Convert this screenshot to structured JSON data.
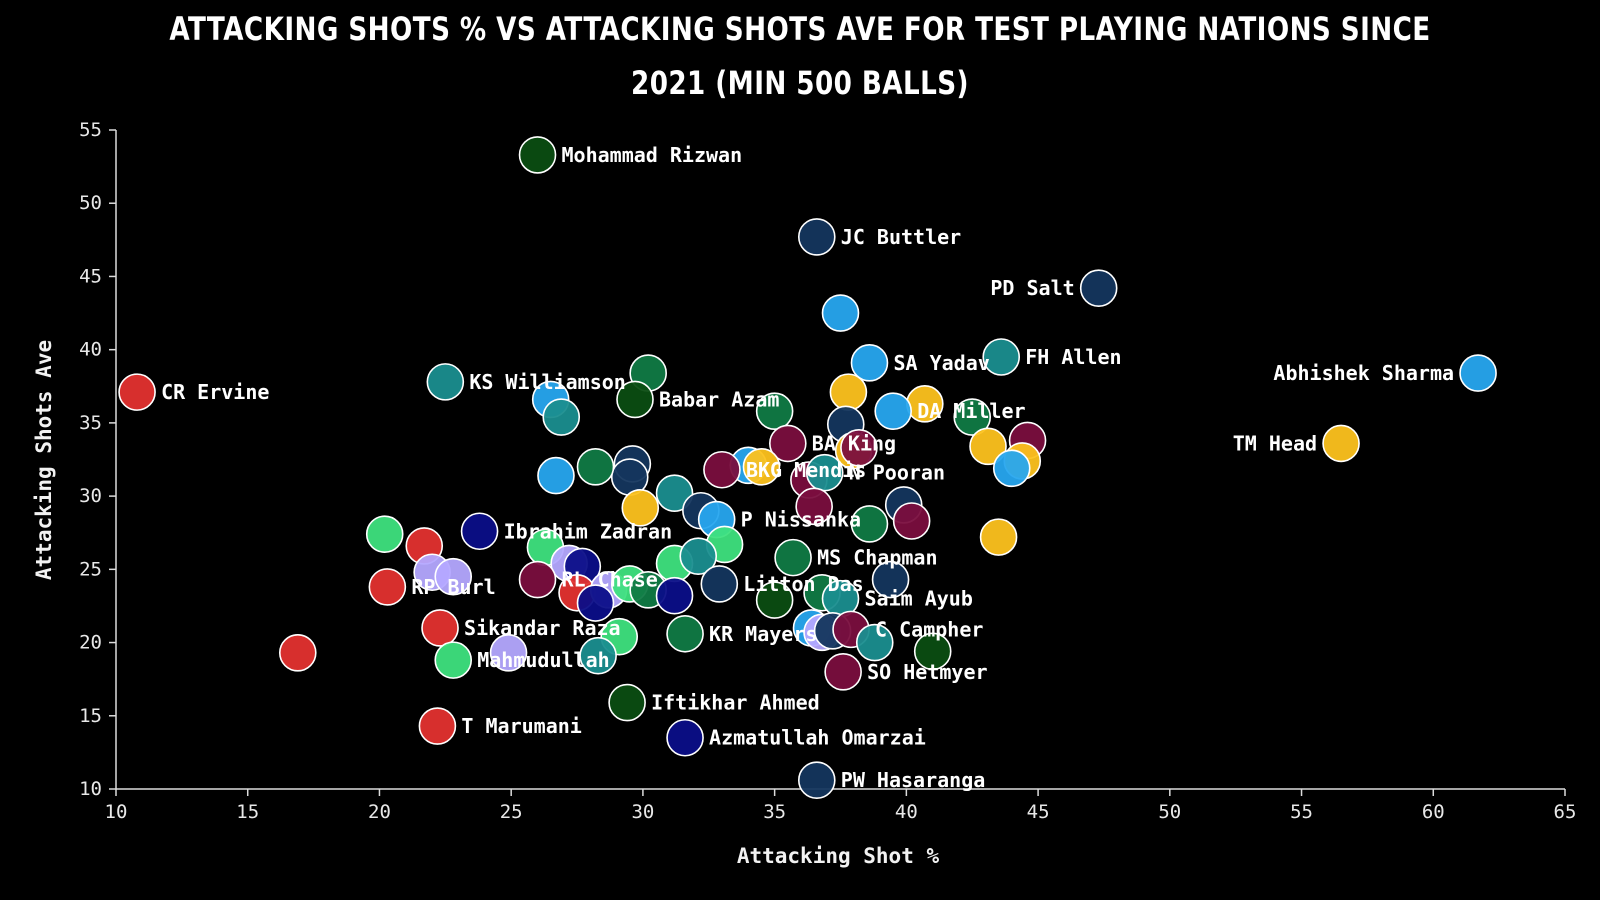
{
  "chart_data": {
    "type": "scatter",
    "title": "Attacking Shots  % vs Attacking Shots Ave for Test playing nations since 2021 (min 500 balls)",
    "xlabel": "Attacking Shot %",
    "ylabel": "Attacking Shots Ave",
    "xlim": [
      10,
      65
    ],
    "ylim": [
      10,
      55
    ],
    "xticks": [
      10,
      15,
      20,
      25,
      30,
      35,
      40,
      45,
      50,
      55,
      60,
      65
    ],
    "yticks": [
      10,
      15,
      20,
      25,
      30,
      35,
      40,
      45,
      50,
      55
    ],
    "grid": false,
    "colors": {
      "pakistan": "#0b4d12",
      "england": "#14365e",
      "india": "#27a7ef",
      "australia": "#fdc21e",
      "westindies": "#7a0e3e",
      "zimbabwe": "#e3322f",
      "newzealand": "#1a8e8f",
      "southafrica": "#107a45",
      "bangladesh": "#1a7f50",
      "srilanka": "#2a3d8f",
      "afghanistan": "#0b0e88",
      "ireland": "#3ee17e",
      "other": "#b4a8ff"
    },
    "points": [
      {
        "x": 26.0,
        "y": 53.3,
        "label": "Mohammad Rizwan",
        "color": "#0b4d12"
      },
      {
        "x": 36.6,
        "y": 47.7,
        "label": "JC Buttler",
        "color": "#14365e"
      },
      {
        "x": 47.3,
        "y": 44.2,
        "label": "PD Salt",
        "color": "#14365e"
      },
      {
        "x": 37.5,
        "y": 42.5,
        "label": "",
        "color": "#27a7ef"
      },
      {
        "x": 10.8,
        "y": 37.1,
        "label": "CR Ervine",
        "color": "#e3322f"
      },
      {
        "x": 22.5,
        "y": 37.8,
        "label": "KS Williamson",
        "color": "#1a8e8f"
      },
      {
        "x": 30.2,
        "y": 38.4,
        "label": "",
        "color": "#107a45"
      },
      {
        "x": 29.7,
        "y": 36.6,
        "label": "Babar Azam",
        "color": "#0b4d12"
      },
      {
        "x": 26.5,
        "y": 36.6,
        "label": "",
        "color": "#27a7ef"
      },
      {
        "x": 26.9,
        "y": 35.4,
        "label": "",
        "color": "#1a8e8f"
      },
      {
        "x": 38.6,
        "y": 39.1,
        "label": "SA Yadav",
        "color": "#27a7ef"
      },
      {
        "x": 37.8,
        "y": 37.1,
        "label": "",
        "color": "#fdc21e"
      },
      {
        "x": 43.6,
        "y": 39.5,
        "label": "FH Allen",
        "color": "#1a8e8f"
      },
      {
        "x": 40.7,
        "y": 36.3,
        "label": "",
        "color": "#fdc21e"
      },
      {
        "x": 39.5,
        "y": 35.8,
        "label": "DA Miller",
        "color": "#27a7ef"
      },
      {
        "x": 35.0,
        "y": 35.8,
        "label": "",
        "color": "#107a45"
      },
      {
        "x": 37.7,
        "y": 34.9,
        "label": "",
        "color": "#14365e"
      },
      {
        "x": 42.5,
        "y": 35.4,
        "label": "",
        "color": "#107a45"
      },
      {
        "x": 43.1,
        "y": 33.4,
        "label": "",
        "color": "#fdc21e"
      },
      {
        "x": 44.6,
        "y": 33.8,
        "label": "",
        "color": "#7a0e3e"
      },
      {
        "x": 44.4,
        "y": 32.4,
        "label": "",
        "color": "#fdc21e"
      },
      {
        "x": 44.0,
        "y": 31.9,
        "label": "",
        "color": "#27a7ef"
      },
      {
        "x": 61.7,
        "y": 38.4,
        "label": "Abhishek Sharma",
        "color": "#27a7ef"
      },
      {
        "x": 56.5,
        "y": 33.6,
        "label": "TM Head",
        "color": "#fdc21e"
      },
      {
        "x": 35.5,
        "y": 33.6,
        "label": "BA King",
        "color": "#7a0e3e"
      },
      {
        "x": 38.0,
        "y": 33.1,
        "label": "",
        "color": "#fdc21e"
      },
      {
        "x": 38.2,
        "y": 33.3,
        "label": "",
        "color": "#7a0e3e"
      },
      {
        "x": 34.0,
        "y": 32.1,
        "label": "",
        "color": "#27a7ef"
      },
      {
        "x": 34.5,
        "y": 32.0,
        "label": "",
        "color": "#fdc21e"
      },
      {
        "x": 33.0,
        "y": 31.8,
        "label": "BKG Mendis",
        "color": "#7a0e3e"
      },
      {
        "x": 29.6,
        "y": 32.2,
        "label": "",
        "color": "#14365e"
      },
      {
        "x": 29.5,
        "y": 31.3,
        "label": "",
        "color": "#14365e"
      },
      {
        "x": 28.2,
        "y": 32.0,
        "label": "",
        "color": "#107a45"
      },
      {
        "x": 26.7,
        "y": 31.4,
        "label": "",
        "color": "#27a7ef"
      },
      {
        "x": 36.3,
        "y": 31.1,
        "label": "",
        "color": "#7a0e3e"
      },
      {
        "x": 36.9,
        "y": 31.6,
        "label": "N Pooran",
        "color": "#1a8e8f"
      },
      {
        "x": 31.2,
        "y": 30.2,
        "label": "",
        "color": "#1a8e8f"
      },
      {
        "x": 29.9,
        "y": 29.2,
        "label": "",
        "color": "#fdc21e"
      },
      {
        "x": 32.2,
        "y": 29.0,
        "label": "",
        "color": "#14365e"
      },
      {
        "x": 39.9,
        "y": 29.4,
        "label": "",
        "color": "#14365e"
      },
      {
        "x": 36.5,
        "y": 29.3,
        "label": "",
        "color": "#7a0e3e"
      },
      {
        "x": 32.8,
        "y": 28.4,
        "label": "P Nissanka",
        "color": "#27a7ef"
      },
      {
        "x": 38.6,
        "y": 28.1,
        "label": "",
        "color": "#107a45"
      },
      {
        "x": 40.2,
        "y": 28.3,
        "label": "",
        "color": "#7a0e3e"
      },
      {
        "x": 43.5,
        "y": 27.2,
        "label": "",
        "color": "#fdc21e"
      },
      {
        "x": 20.2,
        "y": 27.4,
        "label": "",
        "color": "#3ee17e"
      },
      {
        "x": 21.7,
        "y": 26.6,
        "label": "",
        "color": "#e3322f"
      },
      {
        "x": 23.8,
        "y": 27.6,
        "label": "Ibrahim Zadran",
        "color": "#0b0e88"
      },
      {
        "x": 26.3,
        "y": 26.5,
        "label": "",
        "color": "#3ee17e"
      },
      {
        "x": 33.1,
        "y": 26.7,
        "label": "",
        "color": "#3ee17e"
      },
      {
        "x": 35.7,
        "y": 25.8,
        "label": "MS Chapman",
        "color": "#107a45"
      },
      {
        "x": 31.2,
        "y": 25.4,
        "label": "",
        "color": "#3ee17e"
      },
      {
        "x": 32.1,
        "y": 25.9,
        "label": "",
        "color": "#1a8e8f"
      },
      {
        "x": 22.0,
        "y": 24.8,
        "label": "",
        "color": "#b4a8ff"
      },
      {
        "x": 22.8,
        "y": 24.5,
        "label": "",
        "color": "#b4a8ff"
      },
      {
        "x": 27.2,
        "y": 25.4,
        "label": "",
        "color": "#b4a8ff"
      },
      {
        "x": 27.7,
        "y": 25.2,
        "label": "",
        "color": "#0b0e88"
      },
      {
        "x": 26.0,
        "y": 24.3,
        "label": "RL Chase",
        "color": "#7a0e3e"
      },
      {
        "x": 20.3,
        "y": 23.8,
        "label": "RP Burl",
        "color": "#e3322f"
      },
      {
        "x": 27.5,
        "y": 23.4,
        "label": "",
        "color": "#e3322f"
      },
      {
        "x": 28.7,
        "y": 23.6,
        "label": "",
        "color": "#b4a8ff"
      },
      {
        "x": 28.2,
        "y": 22.7,
        "label": "",
        "color": "#0b0e88"
      },
      {
        "x": 29.5,
        "y": 24.0,
        "label": "",
        "color": "#3ee17e"
      },
      {
        "x": 30.2,
        "y": 23.6,
        "label": "",
        "color": "#107a45"
      },
      {
        "x": 31.2,
        "y": 23.2,
        "label": "",
        "color": "#0b0e88"
      },
      {
        "x": 32.9,
        "y": 24.0,
        "label": "Litton Das",
        "color": "#14365e"
      },
      {
        "x": 35.0,
        "y": 22.9,
        "label": "",
        "color": "#0b4d12"
      },
      {
        "x": 36.8,
        "y": 23.4,
        "label": "",
        "color": "#107a45"
      },
      {
        "x": 37.5,
        "y": 23.0,
        "label": "Saim Ayub",
        "color": "#1a8e8f"
      },
      {
        "x": 39.4,
        "y": 24.3,
        "label": "",
        "color": "#14365e"
      },
      {
        "x": 22.3,
        "y": 21.0,
        "label": "Sikandar Raza",
        "color": "#e3322f"
      },
      {
        "x": 29.1,
        "y": 20.4,
        "label": "",
        "color": "#3ee17e"
      },
      {
        "x": 31.6,
        "y": 20.6,
        "label": "KR Mayers",
        "color": "#107a45"
      },
      {
        "x": 36.4,
        "y": 21.0,
        "label": "",
        "color": "#27a7ef"
      },
      {
        "x": 36.8,
        "y": 20.7,
        "label": "",
        "color": "#b4a8ff"
      },
      {
        "x": 37.2,
        "y": 20.8,
        "label": "",
        "color": "#14365e"
      },
      {
        "x": 37.9,
        "y": 20.9,
        "label": "C Campher",
        "color": "#7a0e3e"
      },
      {
        "x": 38.8,
        "y": 20.0,
        "label": "",
        "color": "#1a8e8f"
      },
      {
        "x": 41.0,
        "y": 19.4,
        "label": "",
        "color": "#0b4d12"
      },
      {
        "x": 16.9,
        "y": 19.3,
        "label": "",
        "color": "#e3322f"
      },
      {
        "x": 22.8,
        "y": 18.8,
        "label": "Mahmudullah",
        "color": "#3ee17e"
      },
      {
        "x": 24.9,
        "y": 19.3,
        "label": "",
        "color": "#b4a8ff"
      },
      {
        "x": 28.3,
        "y": 19.1,
        "label": "",
        "color": "#1a8e8f"
      },
      {
        "x": 37.6,
        "y": 18.0,
        "label": "SO Hetmyer",
        "color": "#7a0e3e"
      },
      {
        "x": 29.4,
        "y": 15.9,
        "label": "Iftikhar Ahmed",
        "color": "#0b4d12"
      },
      {
        "x": 22.2,
        "y": 14.3,
        "label": "T Marumani",
        "color": "#e3322f"
      },
      {
        "x": 31.6,
        "y": 13.5,
        "label": "Azmatullah Omarzai",
        "color": "#0b0e88"
      },
      {
        "x": 36.6,
        "y": 10.6,
        "label": "PW Hasaranga",
        "color": "#14365e"
      }
    ]
  }
}
